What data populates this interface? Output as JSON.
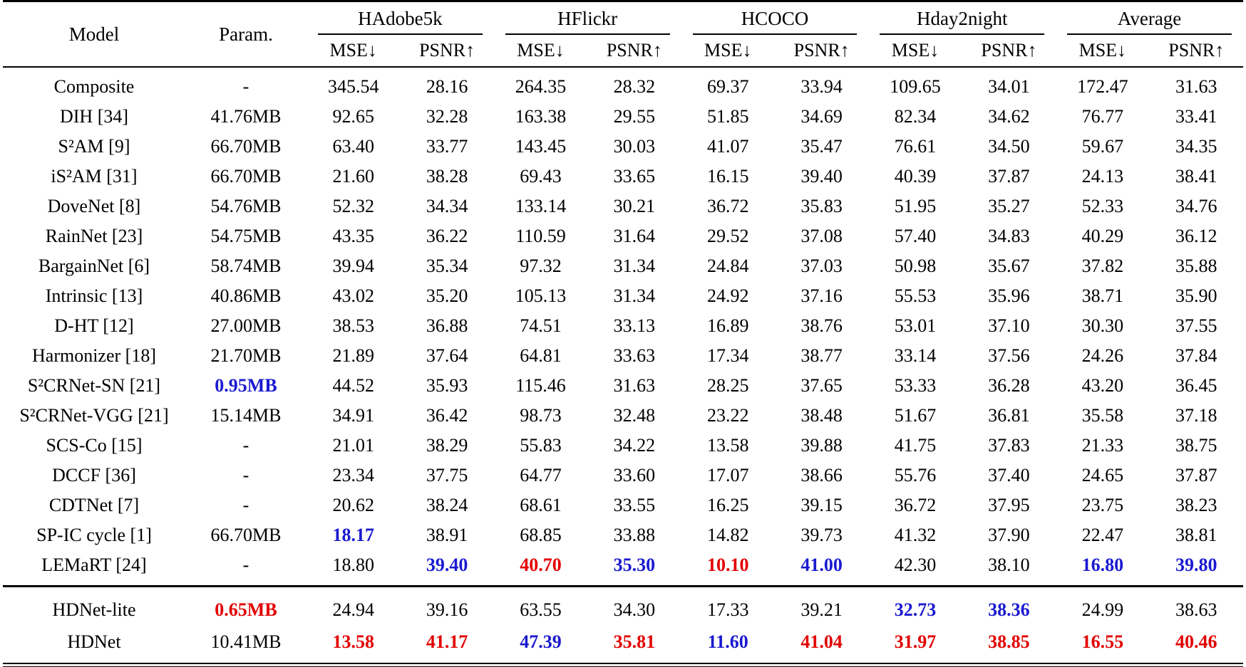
{
  "title": "Image harmonization quantitative comparison table",
  "colors": {
    "best": "#e30000",
    "second": "#1a1ad0"
  },
  "table": {
    "header": {
      "model": "Model",
      "param": "Param.",
      "mse": "MSE↓",
      "psnr": "PSNR↑"
    },
    "groups": [
      "HAdobe5k",
      "HFlickr",
      "HCOCO",
      "Hday2night",
      "Average"
    ],
    "sections": [
      {
        "rows": [
          {
            "model": "Composite",
            "param": {
              "t": "-"
            },
            "values": [
              {
                "t": "345.54"
              },
              {
                "t": "28.16"
              },
              {
                "t": "264.35"
              },
              {
                "t": "28.32"
              },
              {
                "t": "69.37"
              },
              {
                "t": "33.94"
              },
              {
                "t": "109.65"
              },
              {
                "t": "34.01"
              },
              {
                "t": "172.47"
              },
              {
                "t": "31.63"
              }
            ]
          },
          {
            "model": "DIH [34]",
            "param": {
              "t": "41.76MB"
            },
            "values": [
              {
                "t": "92.65"
              },
              {
                "t": "32.28"
              },
              {
                "t": "163.38"
              },
              {
                "t": "29.55"
              },
              {
                "t": "51.85"
              },
              {
                "t": "34.69"
              },
              {
                "t": "82.34"
              },
              {
                "t": "34.62"
              },
              {
                "t": "76.77"
              },
              {
                "t": "33.41"
              }
            ]
          },
          {
            "model": "S²AM [9]",
            "param": {
              "t": "66.70MB"
            },
            "values": [
              {
                "t": "63.40"
              },
              {
                "t": "33.77"
              },
              {
                "t": "143.45"
              },
              {
                "t": "30.03"
              },
              {
                "t": "41.07"
              },
              {
                "t": "35.47"
              },
              {
                "t": "76.61"
              },
              {
                "t": "34.50"
              },
              {
                "t": "59.67"
              },
              {
                "t": "34.35"
              }
            ]
          },
          {
            "model": "iS²AM [31]",
            "param": {
              "t": "66.70MB"
            },
            "values": [
              {
                "t": "21.60"
              },
              {
                "t": "38.28"
              },
              {
                "t": "69.43"
              },
              {
                "t": "33.65"
              },
              {
                "t": "16.15"
              },
              {
                "t": "39.40"
              },
              {
                "t": "40.39"
              },
              {
                "t": "37.87"
              },
              {
                "t": "24.13"
              },
              {
                "t": "38.41"
              }
            ]
          },
          {
            "model": "DoveNet [8]",
            "param": {
              "t": "54.76MB"
            },
            "values": [
              {
                "t": "52.32"
              },
              {
                "t": "34.34"
              },
              {
                "t": "133.14"
              },
              {
                "t": "30.21"
              },
              {
                "t": "36.72"
              },
              {
                "t": "35.83"
              },
              {
                "t": "51.95"
              },
              {
                "t": "35.27"
              },
              {
                "t": "52.33"
              },
              {
                "t": "34.76"
              }
            ]
          },
          {
            "model": "RainNet [23]",
            "param": {
              "t": "54.75MB"
            },
            "values": [
              {
                "t": "43.35"
              },
              {
                "t": "36.22"
              },
              {
                "t": "110.59"
              },
              {
                "t": "31.64"
              },
              {
                "t": "29.52"
              },
              {
                "t": "37.08"
              },
              {
                "t": "57.40"
              },
              {
                "t": "34.83"
              },
              {
                "t": "40.29"
              },
              {
                "t": "36.12"
              }
            ]
          },
          {
            "model": "BargainNet [6]",
            "param": {
              "t": "58.74MB"
            },
            "values": [
              {
                "t": "39.94"
              },
              {
                "t": "35.34"
              },
              {
                "t": "97.32"
              },
              {
                "t": "31.34"
              },
              {
                "t": "24.84"
              },
              {
                "t": "37.03"
              },
              {
                "t": "50.98"
              },
              {
                "t": "35.67"
              },
              {
                "t": "37.82"
              },
              {
                "t": "35.88"
              }
            ]
          },
          {
            "model": "Intrinsic [13]",
            "param": {
              "t": "40.86MB"
            },
            "values": [
              {
                "t": "43.02"
              },
              {
                "t": "35.20"
              },
              {
                "t": "105.13"
              },
              {
                "t": "31.34"
              },
              {
                "t": "24.92"
              },
              {
                "t": "37.16"
              },
              {
                "t": "55.53"
              },
              {
                "t": "35.96"
              },
              {
                "t": "38.71"
              },
              {
                "t": "35.90"
              }
            ]
          },
          {
            "model": "D-HT [12]",
            "param": {
              "t": "27.00MB"
            },
            "values": [
              {
                "t": "38.53"
              },
              {
                "t": "36.88"
              },
              {
                "t": "74.51"
              },
              {
                "t": "33.13"
              },
              {
                "t": "16.89"
              },
              {
                "t": "38.76"
              },
              {
                "t": "53.01"
              },
              {
                "t": "37.10"
              },
              {
                "t": "30.30"
              },
              {
                "t": "37.55"
              }
            ]
          },
          {
            "model": "Harmonizer [18]",
            "param": {
              "t": "21.70MB"
            },
            "values": [
              {
                "t": "21.89"
              },
              {
                "t": "37.64"
              },
              {
                "t": "64.81"
              },
              {
                "t": "33.63"
              },
              {
                "t": "17.34"
              },
              {
                "t": "38.77"
              },
              {
                "t": "33.14"
              },
              {
                "t": "37.56"
              },
              {
                "t": "24.26"
              },
              {
                "t": "37.84"
              }
            ]
          },
          {
            "model": "S²CRNet-SN [21]",
            "param": {
              "t": "0.95MB",
              "s": "second"
            },
            "values": [
              {
                "t": "44.52"
              },
              {
                "t": "35.93"
              },
              {
                "t": "115.46"
              },
              {
                "t": "31.63"
              },
              {
                "t": "28.25"
              },
              {
                "t": "37.65"
              },
              {
                "t": "53.33"
              },
              {
                "t": "36.28"
              },
              {
                "t": "43.20"
              },
              {
                "t": "36.45"
              }
            ]
          },
          {
            "model": "S²CRNet-VGG [21]",
            "param": {
              "t": "15.14MB"
            },
            "values": [
              {
                "t": "34.91"
              },
              {
                "t": "36.42"
              },
              {
                "t": "98.73"
              },
              {
                "t": "32.48"
              },
              {
                "t": "23.22"
              },
              {
                "t": "38.48"
              },
              {
                "t": "51.67"
              },
              {
                "t": "36.81"
              },
              {
                "t": "35.58"
              },
              {
                "t": "37.18"
              }
            ]
          },
          {
            "model": "SCS-Co [15]",
            "param": {
              "t": "-"
            },
            "values": [
              {
                "t": "21.01"
              },
              {
                "t": "38.29"
              },
              {
                "t": "55.83"
              },
              {
                "t": "34.22"
              },
              {
                "t": "13.58"
              },
              {
                "t": "39.88"
              },
              {
                "t": "41.75"
              },
              {
                "t": "37.83"
              },
              {
                "t": "21.33"
              },
              {
                "t": "38.75"
              }
            ]
          },
          {
            "model": "DCCF [36]",
            "param": {
              "t": "-"
            },
            "values": [
              {
                "t": "23.34"
              },
              {
                "t": "37.75"
              },
              {
                "t": "64.77"
              },
              {
                "t": "33.60"
              },
              {
                "t": "17.07"
              },
              {
                "t": "38.66"
              },
              {
                "t": "55.76"
              },
              {
                "t": "37.40"
              },
              {
                "t": "24.65"
              },
              {
                "t": "37.87"
              }
            ]
          },
          {
            "model": "CDTNet [7]",
            "param": {
              "t": "-"
            },
            "values": [
              {
                "t": "20.62"
              },
              {
                "t": "38.24"
              },
              {
                "t": "68.61"
              },
              {
                "t": "33.55"
              },
              {
                "t": "16.25"
              },
              {
                "t": "39.15"
              },
              {
                "t": "36.72"
              },
              {
                "t": "37.95"
              },
              {
                "t": "23.75"
              },
              {
                "t": "38.23"
              }
            ]
          },
          {
            "model": "SP-IC cycle [1]",
            "param": {
              "t": "66.70MB"
            },
            "values": [
              {
                "t": "18.17",
                "s": "second"
              },
              {
                "t": "38.91"
              },
              {
                "t": "68.85"
              },
              {
                "t": "33.88"
              },
              {
                "t": "14.82"
              },
              {
                "t": "39.73"
              },
              {
                "t": "41.32"
              },
              {
                "t": "37.90"
              },
              {
                "t": "22.47"
              },
              {
                "t": "38.81"
              }
            ]
          },
          {
            "model": "LEMaRT [24]",
            "param": {
              "t": "-"
            },
            "values": [
              {
                "t": "18.80"
              },
              {
                "t": "39.40",
                "s": "second"
              },
              {
                "t": "40.70",
                "s": "best"
              },
              {
                "t": "35.30",
                "s": "second"
              },
              {
                "t": "10.10",
                "s": "best"
              },
              {
                "t": "41.00",
                "s": "second"
              },
              {
                "t": "42.30"
              },
              {
                "t": "38.10"
              },
              {
                "t": "16.80",
                "s": "second"
              },
              {
                "t": "39.80",
                "s": "second"
              }
            ]
          }
        ]
      },
      {
        "rows": [
          {
            "model": "HDNet-lite",
            "param": {
              "t": "0.65MB",
              "s": "best"
            },
            "values": [
              {
                "t": "24.94"
              },
              {
                "t": "39.16"
              },
              {
                "t": "63.55"
              },
              {
                "t": "34.30"
              },
              {
                "t": "17.33"
              },
              {
                "t": "39.21"
              },
              {
                "t": "32.73",
                "s": "second"
              },
              {
                "t": "38.36",
                "s": "second"
              },
              {
                "t": "24.99"
              },
              {
                "t": "38.63"
              }
            ]
          },
          {
            "model": "HDNet",
            "param": {
              "t": "10.41MB"
            },
            "values": [
              {
                "t": "13.58",
                "s": "best"
              },
              {
                "t": "41.17",
                "s": "best"
              },
              {
                "t": "47.39",
                "s": "second"
              },
              {
                "t": "35.81",
                "s": "best"
              },
              {
                "t": "11.60",
                "s": "second"
              },
              {
                "t": "41.04",
                "s": "best"
              },
              {
                "t": "31.97",
                "s": "best"
              },
              {
                "t": "38.85",
                "s": "best"
              },
              {
                "t": "16.55",
                "s": "best"
              },
              {
                "t": "40.46",
                "s": "best"
              }
            ]
          }
        ]
      }
    ]
  }
}
